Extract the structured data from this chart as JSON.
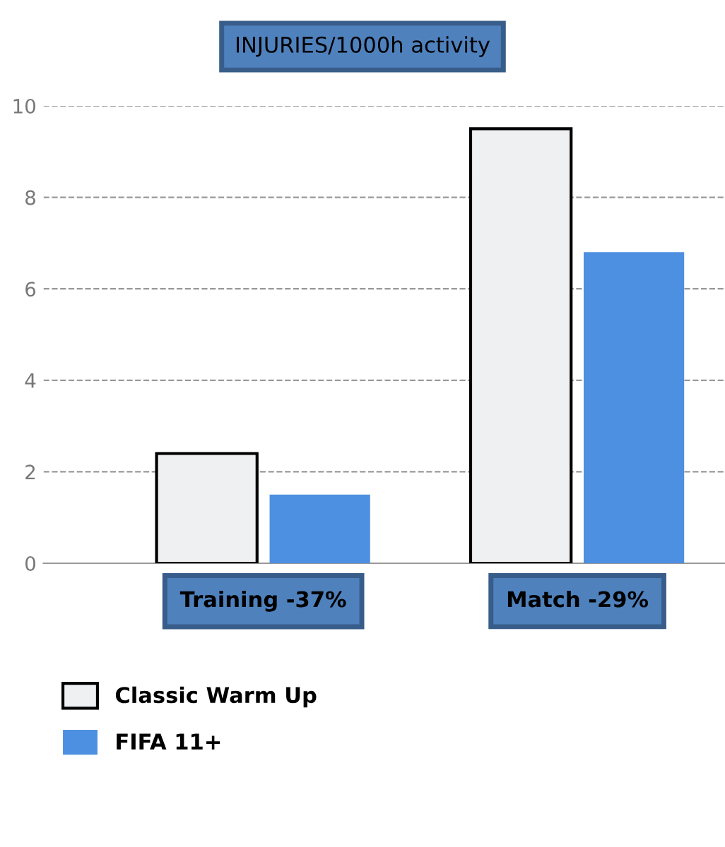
{
  "chart_data": {
    "type": "bar",
    "title": "INJURIES/1000h activity",
    "categories": [
      "Training -37%",
      "Match -29%"
    ],
    "series": [
      {
        "name": "Classic Warm Up",
        "color": "#eef0f2",
        "values": [
          2.4,
          9.5
        ]
      },
      {
        "name": "FIFA 11+",
        "color": "#4d8fe0",
        "values": [
          1.5,
          6.8
        ]
      }
    ],
    "ylim": [
      0,
      10
    ],
    "yticks": [
      0,
      2,
      4,
      6,
      8,
      10
    ],
    "grid": "y",
    "legend": "bottom left"
  }
}
